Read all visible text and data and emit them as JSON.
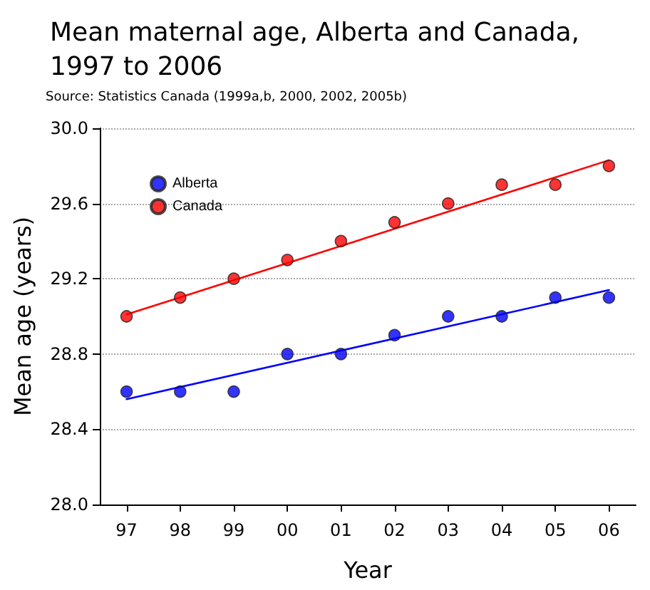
{
  "chart_data": {
    "type": "scatter",
    "title": "Mean maternal age, Alberta and Canada,\n1997 to 2006",
    "annotations": [
      "Source: Statistics Canada (1999a,b, 2000, 2002, 2005b)"
    ],
    "xlabel": "Year",
    "ylabel": "Mean age (years)",
    "categories": [
      "97",
      "98",
      "99",
      "00",
      "01",
      "02",
      "03",
      "04",
      "05",
      "06"
    ],
    "series": [
      {
        "name": "Alberta",
        "color": "#0000ff",
        "values": [
          28.6,
          28.6,
          28.6,
          28.8,
          28.8,
          28.9,
          29.0,
          29.0,
          29.1,
          29.1
        ]
      },
      {
        "name": "Canada",
        "color": "#ff0000",
        "values": [
          29.0,
          29.1,
          29.2,
          29.3,
          29.4,
          29.5,
          29.6,
          29.7,
          29.7,
          29.8
        ]
      },
      {
        "type": "line",
        "color": "#0000ff",
        "x": [
          "97",
          "06"
        ],
        "values": [
          28.56,
          29.14
        ],
        "marker": "none",
        "line_style": "solid"
      },
      {
        "type": "line",
        "color": "#ff0000",
        "x": [
          "97",
          "06"
        ],
        "values": [
          29.01,
          29.83
        ],
        "marker": "none",
        "line_style": "solid"
      }
    ],
    "ylim": [
      28.0,
      30.0
    ],
    "yticks": [
      {
        "value": 28.0,
        "label": "28.0"
      },
      {
        "value": 28.4,
        "label": "28.4"
      },
      {
        "value": 28.8,
        "label": "28.8"
      },
      {
        "value": 29.2,
        "label": "29.2"
      },
      {
        "value": 29.6,
        "label": "29.6"
      },
      {
        "value": 30.0,
        "label": "30.0"
      }
    ],
    "grid": "y",
    "legend": "top left",
    "marker": "circle"
  }
}
